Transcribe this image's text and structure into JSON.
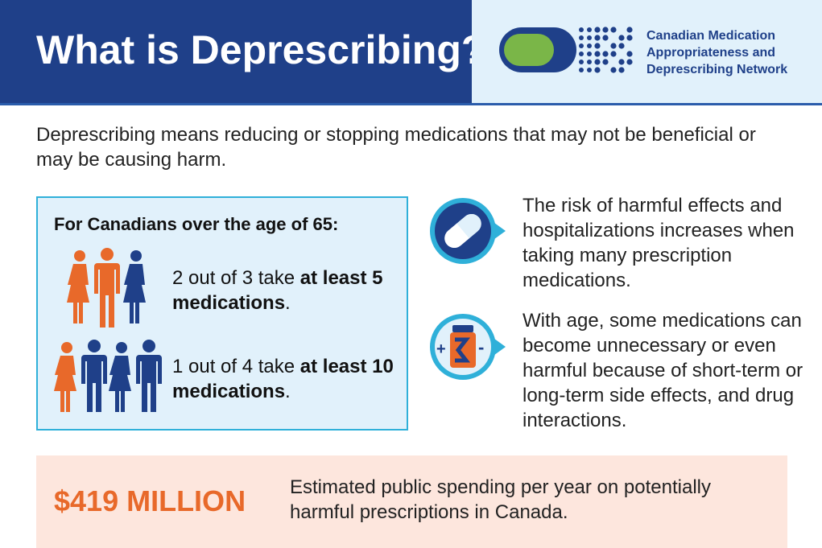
{
  "header": {
    "title": "What is Deprescribing?",
    "logo": {
      "icon": "pill-dots-logo-icon",
      "lines": [
        "Canadian Medication",
        "Appropriateness and",
        "Deprescribing Network"
      ]
    }
  },
  "intro": {
    "text": "Deprescribing means reducing or stopping medications that may not be beneficial or may be causing harm."
  },
  "stats": {
    "heading": "For Canadians over the age of 65:",
    "items": [
      {
        "prefix": "2 out of 3 take ",
        "bold": "at least 5 medications",
        "suffix": ".",
        "people_highlighted": 2,
        "people_total": 3
      },
      {
        "prefix": "1 out of 4 take ",
        "bold": "at least 10 medications",
        "suffix": ".",
        "people_highlighted": 1,
        "people_total": 4
      }
    ]
  },
  "facts": [
    {
      "icon": "capsule-icon",
      "text": "The risk of harmful effects and hospitalizations increases when taking many prescription medications."
    },
    {
      "icon": "pill-bottle-plus-minus-icon",
      "text": "With age, some medications can become unnecessary or even harmful because of short-term or long-term side effects, and drug interactions."
    }
  ],
  "cost": {
    "value": "$419 MILLION",
    "description": "Estimated public spending per year on potentially harmful prescriptions in Canada."
  },
  "colors": {
    "navy": "#1f4089",
    "light_blue": "#e1f1fb",
    "cyan": "#2fb0d9",
    "orange": "#e8692a",
    "green": "#7ab648",
    "peach": "#fde6dd"
  }
}
